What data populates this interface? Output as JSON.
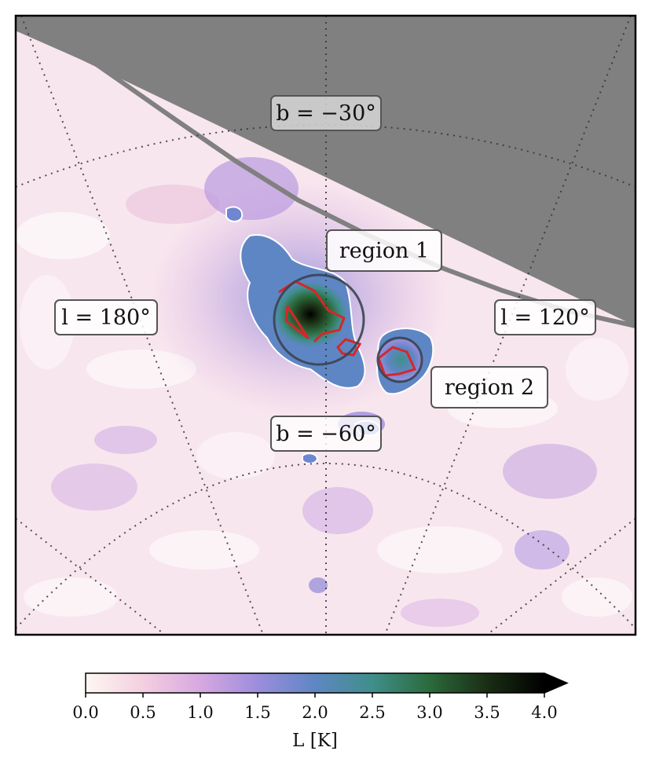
{
  "chart_data": {
    "type": "heatmap",
    "title": "",
    "grid_labels": {
      "b_top": "b = −30°",
      "b_bottom": "b = −60°",
      "l_left": "l = 180°",
      "l_right": "l = 120°"
    },
    "annotations": {
      "region1": "region 1",
      "region2": "region 2"
    },
    "colorbar": {
      "label": "L [K]",
      "vmin": 0.0,
      "vmax": 4.0,
      "extend": "max",
      "ticks": [
        "0.0",
        "0.5",
        "1.0",
        "1.5",
        "2.0",
        "2.5",
        "3.0",
        "3.5",
        "4.0"
      ],
      "colormap": [
        "#fdf7f1",
        "#f4cfe0",
        "#d7a8e0",
        "#9c8ddd",
        "#5f86c4",
        "#3f8f8a",
        "#2b6a3c",
        "#1a2e14",
        "#000000"
      ]
    },
    "masked_color": "#808080",
    "contour_colors": {
      "threshold": "#ffffff",
      "regions": "#d62728",
      "circles": "#3a4452"
    }
  }
}
